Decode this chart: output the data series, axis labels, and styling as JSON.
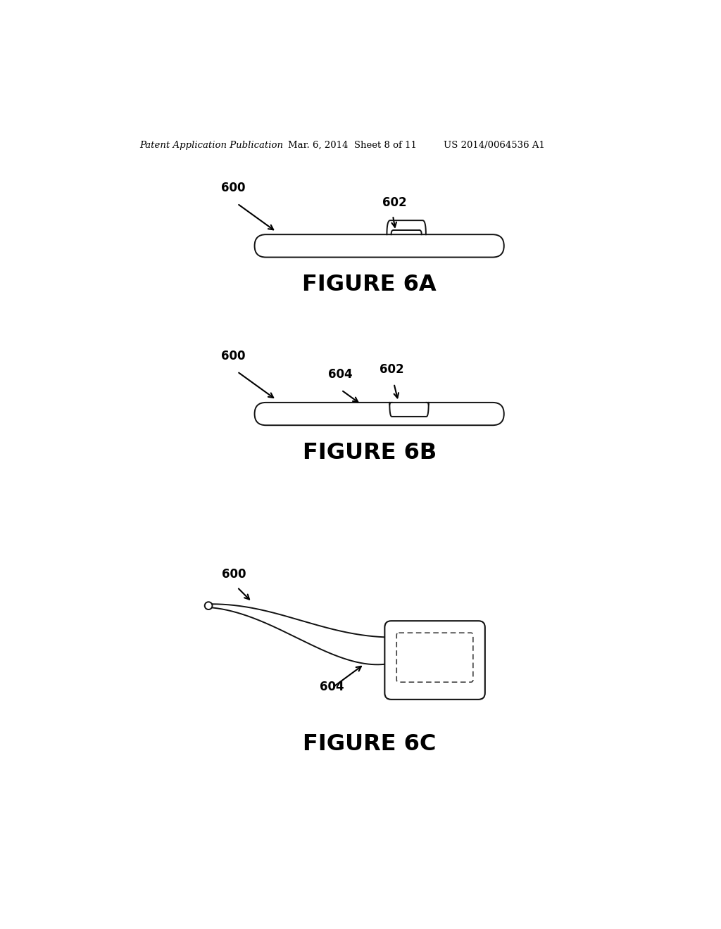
{
  "bg_color": "#ffffff",
  "header_left": "Patent Application Publication",
  "header_mid": "Mar. 6, 2014  Sheet 8 of 11",
  "header_right": "US 2014/0064536 A1",
  "fig6a_title": "FIGURE 6A",
  "fig6b_title": "FIGURE 6B",
  "fig6c_title": "FIGURE 6C",
  "label_600": "600",
  "label_602": "602",
  "label_604": "604"
}
